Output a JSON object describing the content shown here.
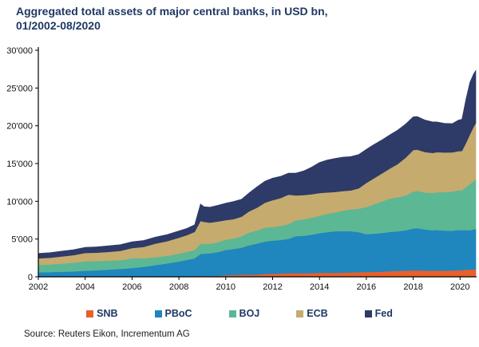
{
  "header": {
    "title_line1": "Aggregated total assets of major central banks, in USD bn,",
    "title_line2": "01/2002-08/2020"
  },
  "source_line": "Source: Reuters Eikon, Incrementum AG",
  "colors": {
    "title_text": "#1F3864",
    "legend_text": "#1F3864",
    "axis": "#000000",
    "snb": "#E8602C",
    "pboc": "#1F86BE",
    "boj": "#5CB795",
    "ecb": "#C5AB6E",
    "fed": "#2E3A67"
  },
  "legend": {
    "items": [
      {
        "label": "SNB",
        "color": "#E8602C"
      },
      {
        "label": "PBoC",
        "color": "#1F86BE"
      },
      {
        "label": "BOJ",
        "color": "#5CB795"
      },
      {
        "label": "ECB",
        "color": "#C5AB6E"
      },
      {
        "label": "Fed",
        "color": "#2E3A67"
      }
    ]
  },
  "chart_data": {
    "type": "area",
    "stacked": true,
    "title": "Aggregated total assets of major central banks, in USD bn, 01/2002-08/2020",
    "xlabel": "",
    "ylabel": "",
    "grid": false,
    "legend_position": "bottom",
    "ylim": [
      0,
      30000
    ],
    "y_ticks": [
      0,
      5000,
      10000,
      15000,
      20000,
      25000,
      30000
    ],
    "y_tick_labels": [
      "0",
      "5'000",
      "10'000",
      "15'000",
      "20'000",
      "25'000",
      "30'000"
    ],
    "x_ticks": [
      2002,
      2004,
      2006,
      2008,
      2010,
      2012,
      2014,
      2016,
      2018,
      2020
    ],
    "x_range": [
      2002,
      2020.67
    ],
    "x": [
      2002.0,
      2002.5,
      2003.0,
      2003.5,
      2004.0,
      2004.5,
      2005.0,
      2005.5,
      2006.0,
      2006.5,
      2007.0,
      2007.5,
      2008.0,
      2008.33,
      2008.67,
      2008.92,
      2009.08,
      2009.33,
      2009.67,
      2010.0,
      2010.33,
      2010.67,
      2011.0,
      2011.33,
      2011.67,
      2012.0,
      2012.33,
      2012.67,
      2013.0,
      2013.33,
      2013.67,
      2014.0,
      2014.33,
      2014.67,
      2015.0,
      2015.33,
      2015.67,
      2016.0,
      2016.33,
      2016.67,
      2017.0,
      2017.33,
      2017.67,
      2018.0,
      2018.17,
      2018.5,
      2018.83,
      2019.0,
      2019.33,
      2019.67,
      2019.92,
      2020.08,
      2020.25,
      2020.42,
      2020.58,
      2020.67
    ],
    "series": [
      {
        "name": "SNB",
        "color": "#E8602C",
        "values": [
          50,
          52,
          55,
          58,
          60,
          62,
          60,
          62,
          64,
          66,
          70,
          75,
          80,
          85,
          95,
          120,
          125,
          120,
          130,
          210,
          240,
          270,
          280,
          300,
          365,
          400,
          430,
          480,
          490,
          480,
          490,
          540,
          530,
          540,
          560,
          590,
          620,
          640,
          660,
          700,
          750,
          780,
          810,
          840,
          850,
          820,
          810,
          810,
          820,
          840,
          850,
          870,
          950,
          960,
          980,
          990
        ]
      },
      {
        "name": "PBoC",
        "color": "#1F86BE",
        "values": [
          550,
          570,
          620,
          660,
          750,
          800,
          900,
          980,
          1100,
          1250,
          1480,
          1700,
          1950,
          2150,
          2350,
          2900,
          2950,
          3000,
          3150,
          3350,
          3450,
          3600,
          3900,
          4100,
          4300,
          4400,
          4450,
          4550,
          4900,
          4950,
          5100,
          5250,
          5400,
          5500,
          5500,
          5450,
          5300,
          5000,
          5050,
          5100,
          5200,
          5250,
          5350,
          5550,
          5600,
          5450,
          5350,
          5400,
          5300,
          5250,
          5350,
          5300,
          5250,
          5200,
          5300,
          5350
        ]
      },
      {
        "name": "BOJ",
        "color": "#5CB795",
        "values": [
          1000,
          1020,
          1080,
          1150,
          1250,
          1220,
          1200,
          1150,
          1300,
          1150,
          1050,
          1000,
          1050,
          1070,
          1100,
          1320,
          1300,
          1250,
          1300,
          1350,
          1400,
          1500,
          1700,
          1750,
          1850,
          1800,
          1850,
          1950,
          2100,
          2200,
          2250,
          2300,
          2400,
          2500,
          2700,
          2900,
          3100,
          3600,
          3900,
          4200,
          4400,
          4500,
          4600,
          4900,
          4950,
          4900,
          4950,
          5000,
          5100,
          5200,
          5250,
          5300,
          5700,
          6100,
          6400,
          6500
        ]
      },
      {
        "name": "ECB",
        "color": "#C5AB6E",
        "values": [
          850,
          880,
          950,
          1000,
          1100,
          1120,
          1150,
          1250,
          1350,
          1500,
          1800,
          1950,
          2100,
          2200,
          2400,
          3050,
          2900,
          2800,
          2750,
          2600,
          2550,
          2600,
          2800,
          3000,
          3300,
          3550,
          3700,
          3900,
          3300,
          3200,
          3100,
          3000,
          2850,
          2700,
          2600,
          2500,
          2700,
          3200,
          3450,
          3700,
          4000,
          4400,
          5000,
          5500,
          5450,
          5350,
          5300,
          5300,
          5250,
          5200,
          5200,
          5200,
          5800,
          6600,
          7200,
          7500
        ]
      },
      {
        "name": "Fed",
        "color": "#2E3A67",
        "values": [
          650,
          680,
          700,
          720,
          750,
          770,
          800,
          810,
          830,
          850,
          860,
          870,
          900,
          900,
          940,
          2250,
          2000,
          2050,
          2150,
          2240,
          2330,
          2300,
          2450,
          2750,
          2850,
          2920,
          2870,
          2850,
          2950,
          3200,
          3600,
          4050,
          4300,
          4450,
          4500,
          4480,
          4470,
          4450,
          4470,
          4450,
          4450,
          4470,
          4460,
          4400,
          4380,
          4250,
          4100,
          4000,
          3850,
          3800,
          4100,
          4200,
          5800,
          6900,
          7000,
          7000
        ]
      }
    ]
  }
}
